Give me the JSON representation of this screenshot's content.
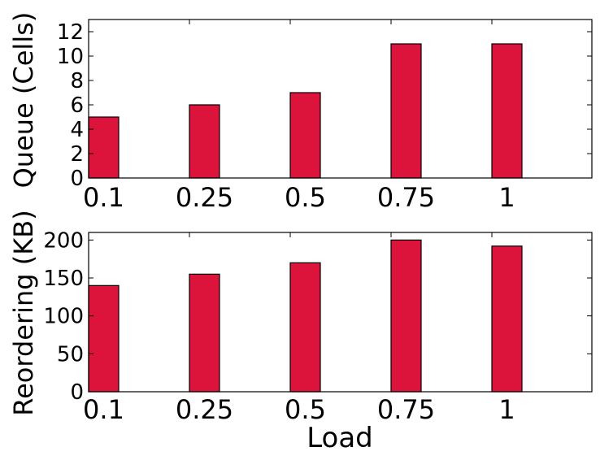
{
  "chart_data": [
    {
      "type": "bar",
      "categories": [
        "0.1",
        "0.25",
        "0.5",
        "0.75",
        "1"
      ],
      "values": [
        5,
        6,
        7,
        11,
        11
      ],
      "xlabel": "",
      "ylabel": "Queue (Cells)",
      "ylim": [
        0,
        13
      ],
      "yticks": [
        "0",
        "2",
        "4",
        "6",
        "8",
        "10",
        "12"
      ],
      "bar_color": "#dc143c",
      "grid": false
    },
    {
      "type": "bar",
      "categories": [
        "0.1",
        "0.25",
        "0.5",
        "0.75",
        "1"
      ],
      "values": [
        140,
        155,
        170,
        200,
        192
      ],
      "xlabel": "Load",
      "ylabel": "Reordering (KB)",
      "ylim": [
        0,
        210
      ],
      "yticks": [
        "0",
        "50",
        "100",
        "150",
        "200"
      ],
      "bar_color": "#dc143c",
      "grid": false
    }
  ]
}
